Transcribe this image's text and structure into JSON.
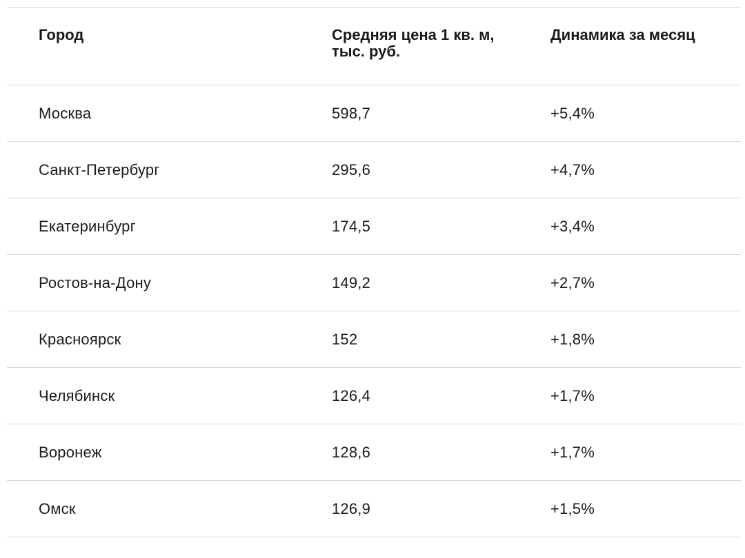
{
  "table": {
    "headers": {
      "city": "Город",
      "price": "Средняя цена 1 кв. м, тыс. руб.",
      "dynamics": "Динамика за месяц"
    },
    "rows": [
      {
        "city": "Москва",
        "price": "598,7",
        "dynamics": "+5,4%"
      },
      {
        "city": "Санкт-Петербург",
        "price": "295,6",
        "dynamics": "+4,7%"
      },
      {
        "city": "Екатеринбург",
        "price": "174,5",
        "dynamics": "+3,4%"
      },
      {
        "city": "Ростов-на-Дону",
        "price": "149,2",
        "dynamics": "+2,7%"
      },
      {
        "city": "Красноярск",
        "price": "152",
        "dynamics": "+1,8%"
      },
      {
        "city": "Челябинск",
        "price": "126,4",
        "dynamics": "+1,7%"
      },
      {
        "city": "Воронеж",
        "price": "128,6",
        "dynamics": "+1,7%"
      },
      {
        "city": "Омск",
        "price": "126,9",
        "dynamics": "+1,5%"
      }
    ]
  }
}
